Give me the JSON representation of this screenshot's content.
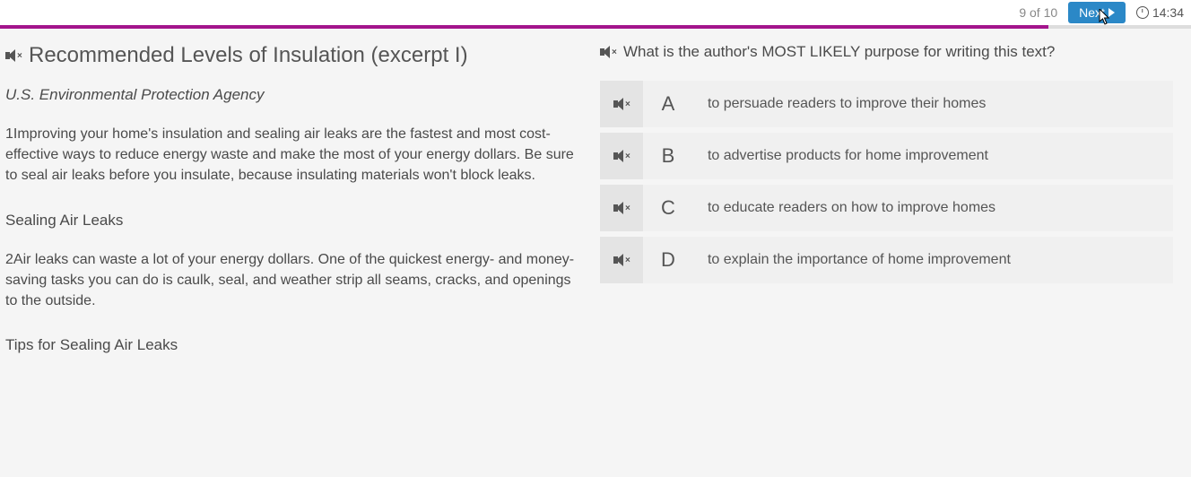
{
  "topbar": {
    "progress": "9 of 10",
    "next_label": "Next",
    "timer": "14:34"
  },
  "progress_bar": {
    "fill_pct": 88,
    "fill_color": "#a3148c",
    "bg_color": "#dddddd"
  },
  "passage": {
    "title": "Recommended Levels of Insulation (excerpt I)",
    "source": "U.S. Environmental Protection Agency",
    "para1": "1Improving your home's insulation and sealing air leaks are the fastest and most cost-effective ways to reduce energy waste and make the most of your energy dollars. Be sure to seal air leaks before you insulate, because insulating materials won't block leaks.",
    "subhead1": "Sealing Air Leaks",
    "para2": "2Air leaks can waste a lot of your energy dollars. One of the quickest energy- and money-saving tasks you can do is caulk, seal, and weather strip all seams, cracks, and openings to the outside.",
    "subhead2": "Tips for Sealing Air Leaks"
  },
  "question": {
    "stem": "What is the author's MOST LIKELY purpose for writing this text?",
    "choices": [
      {
        "letter": "A",
        "text": "to persuade readers to improve their homes"
      },
      {
        "letter": "B",
        "text": "to advertise products for home improvement"
      },
      {
        "letter": "C",
        "text": "to educate readers on how to improve homes"
      },
      {
        "letter": "D",
        "text": "to explain the importance of home improvement"
      }
    ]
  },
  "colors": {
    "answer_speaker_bg": "#e4e4e4",
    "answer_body_bg": "#f0f0f0",
    "next_btn_bg": "#2b88c7",
    "text": "#4a4a4a"
  }
}
